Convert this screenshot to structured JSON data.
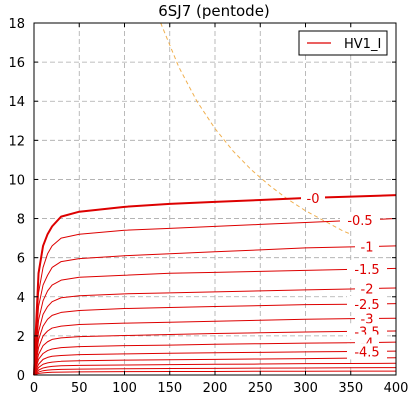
{
  "chart_data": {
    "type": "line",
    "title": "6SJ7 (pentode)",
    "xlabel": "",
    "ylabel": "",
    "xlim": [
      0,
      400
    ],
    "ylim": [
      0,
      18
    ],
    "xticks": [
      0,
      50,
      100,
      150,
      200,
      250,
      300,
      350,
      400
    ],
    "yticks": [
      0,
      2,
      4,
      6,
      8,
      10,
      12,
      14,
      16,
      18
    ],
    "grid": true,
    "legend": {
      "position": "top-right",
      "entries": [
        "HV1_I"
      ]
    },
    "colors": {
      "curves": "#dd0000",
      "dissipation": "#f0b050",
      "grid": "#aaaaaa",
      "axes": "#000000"
    },
    "x": [
      0,
      2,
      5,
      10,
      15,
      20,
      30,
      50,
      100,
      150,
      200,
      250,
      300,
      350,
      400
    ],
    "series": [
      {
        "label": "-0",
        "values": [
          0,
          2.2,
          5.2,
          6.6,
          7.2,
          7.6,
          8.1,
          8.35,
          8.6,
          8.75,
          8.85,
          8.95,
          9.05,
          9.12,
          9.2
        ]
      },
      {
        "label": "-0.5",
        "values": [
          0,
          1.7,
          4.2,
          5.5,
          6.2,
          6.6,
          7.0,
          7.2,
          7.4,
          7.5,
          7.6,
          7.7,
          7.8,
          7.9,
          8.0
        ]
      },
      {
        "label": "-1",
        "values": [
          0,
          1.4,
          3.5,
          4.6,
          5.1,
          5.5,
          5.8,
          5.95,
          6.1,
          6.2,
          6.3,
          6.4,
          6.5,
          6.55,
          6.6
        ]
      },
      {
        "label": "-1.5",
        "values": [
          0,
          1.1,
          2.8,
          3.8,
          4.3,
          4.6,
          4.85,
          5.0,
          5.1,
          5.2,
          5.25,
          5.3,
          5.35,
          5.4,
          5.45
        ]
      },
      {
        "label": "-2",
        "values": [
          0,
          0.9,
          2.2,
          3.1,
          3.5,
          3.75,
          3.95,
          4.05,
          4.15,
          4.2,
          4.25,
          4.3,
          4.35,
          4.4,
          4.45
        ]
      },
      {
        "label": "-2.5",
        "values": [
          0,
          0.7,
          1.8,
          2.5,
          2.85,
          3.05,
          3.2,
          3.3,
          3.4,
          3.45,
          3.5,
          3.55,
          3.6,
          3.62,
          3.65
        ]
      },
      {
        "label": "-3",
        "values": [
          0,
          0.55,
          1.4,
          2.0,
          2.25,
          2.4,
          2.5,
          2.58,
          2.65,
          2.7,
          2.75,
          2.8,
          2.85,
          2.88,
          2.9
        ]
      },
      {
        "label": "-3.5",
        "values": [
          0,
          0.42,
          1.05,
          1.5,
          1.7,
          1.82,
          1.9,
          1.96,
          2.02,
          2.07,
          2.12,
          2.16,
          2.2,
          2.23,
          2.25
        ]
      },
      {
        "label": "-4",
        "values": [
          0,
          0.32,
          0.8,
          1.1,
          1.25,
          1.33,
          1.4,
          1.45,
          1.5,
          1.53,
          1.57,
          1.6,
          1.63,
          1.65,
          1.68
        ]
      },
      {
        "label": "-4.5",
        "values": [
          0,
          0.22,
          0.55,
          0.8,
          0.9,
          0.96,
          1.0,
          1.04,
          1.08,
          1.11,
          1.14,
          1.16,
          1.18,
          1.2,
          1.22
        ]
      },
      {
        "label": "",
        "values": [
          0,
          0.15,
          0.38,
          0.55,
          0.62,
          0.66,
          0.7,
          0.73,
          0.76,
          0.78,
          0.8,
          0.82,
          0.84,
          0.86,
          0.88
        ]
      },
      {
        "label": "",
        "values": [
          0,
          0.1,
          0.25,
          0.36,
          0.41,
          0.44,
          0.47,
          0.49,
          0.51,
          0.53,
          0.55,
          0.56,
          0.58,
          0.59,
          0.6
        ]
      },
      {
        "label": "",
        "values": [
          0,
          0.06,
          0.15,
          0.22,
          0.25,
          0.27,
          0.29,
          0.3,
          0.32,
          0.33,
          0.34,
          0.35,
          0.36,
          0.37,
          0.38
        ]
      },
      {
        "label": "",
        "values": [
          0,
          0.03,
          0.08,
          0.11,
          0.13,
          0.14,
          0.15,
          0.16,
          0.17,
          0.18,
          0.18,
          0.19,
          0.19,
          0.2,
          0.2
        ]
      }
    ],
    "dissipation_curve": {
      "x": [
        140,
        160,
        180,
        200,
        220,
        240,
        260,
        280,
        300,
        320,
        340,
        350
      ],
      "values": [
        18,
        15.75,
        14.0,
        12.6,
        11.45,
        10.5,
        9.7,
        9.0,
        8.4,
        7.9,
        7.4,
        7.2
      ]
    }
  }
}
